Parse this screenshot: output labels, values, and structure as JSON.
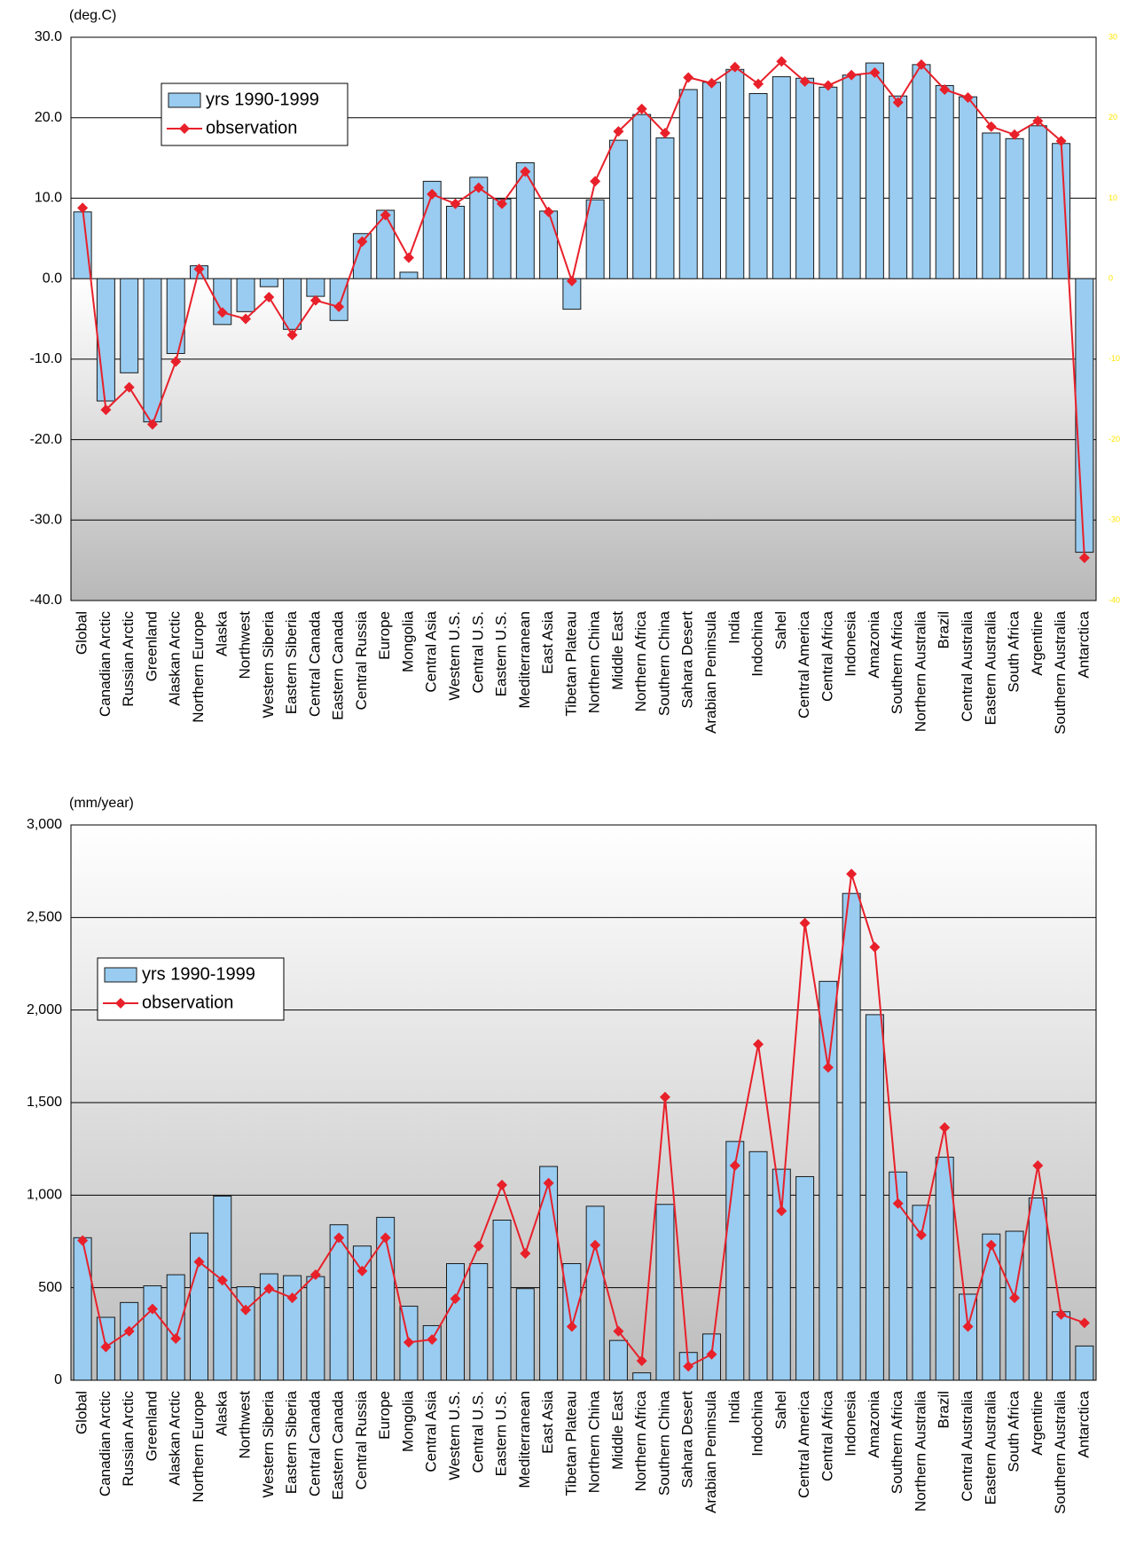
{
  "chart_data": [
    {
      "type": "combo",
      "y_label": "(deg.C)",
      "categories": [
        "Global",
        "Canadian Arctic",
        "Russian Arctic",
        "Greenland",
        "Alaskan Arctic",
        "Northern Europe",
        "Alaska",
        "Northwest",
        "Western Siberia",
        "Eastern Siberia",
        "Central Canada",
        "Eastern Canada",
        "Central Russia",
        "Europe",
        "Mongolia",
        "Central Asia",
        "Western U.S.",
        "Central U.S.",
        "Eastern U.S.",
        "Mediterranean",
        "East Asia",
        "Tibetan Plateau",
        "Northern China",
        "Middle East",
        "Northern Africa",
        "Southern China",
        "Sahara Desert",
        "Arabian Peninsula",
        "India",
        "Indochina",
        "Sahel",
        "Central America",
        "Central Africa",
        "Indonesia",
        "Amazonia",
        "Southern Africa",
        "Northern Australia",
        "Brazil",
        "Central Australia",
        "Eastern Australia",
        "South Africa",
        "Argentine",
        "Southern Australia",
        "Antarctica"
      ],
      "series": [
        {
          "name": "yrs 1990-1999",
          "type": "bar",
          "color": "#99ccf0",
          "values": [
            8.3,
            -15.2,
            -11.7,
            -17.8,
            -9.3,
            1.6,
            -5.7,
            -4.1,
            -1.0,
            -6.3,
            -2.2,
            -5.2,
            5.6,
            8.5,
            0.8,
            12.1,
            9.0,
            12.6,
            9.9,
            14.4,
            8.4,
            -3.8,
            9.8,
            17.2,
            20.4,
            17.5,
            23.5,
            24.4,
            26.0,
            23.0,
            25.1,
            24.9,
            23.8,
            25.3,
            26.8,
            22.7,
            26.6,
            24.0,
            22.6,
            18.1,
            17.4,
            19.0,
            16.8,
            -34.0
          ]
        },
        {
          "name": "observation",
          "type": "line",
          "color": "#e8202a",
          "values": [
            8.8,
            -16.3,
            -13.5,
            -18.1,
            -10.3,
            1.2,
            -4.2,
            -5.0,
            -2.3,
            -7.0,
            -2.7,
            -3.5,
            4.6,
            7.9,
            2.6,
            10.5,
            9.3,
            11.3,
            9.3,
            13.3,
            8.3,
            -0.3,
            12.1,
            18.3,
            21.1,
            18.1,
            25.0,
            24.3,
            26.3,
            24.2,
            27.0,
            24.5,
            24.0,
            25.3,
            25.6,
            21.9,
            26.6,
            23.5,
            22.5,
            18.9,
            17.9,
            19.6,
            17.1,
            -34.7
          ]
        }
      ],
      "ylim": [
        -40,
        30
      ],
      "yticks": [
        {
          "value": -40,
          "label": "-40.0"
        },
        {
          "value": -30,
          "label": "-30.0"
        },
        {
          "value": -20,
          "label": "-20.0"
        },
        {
          "value": -10,
          "label": "-10.0"
        },
        {
          "value": 0,
          "label": "0.0"
        },
        {
          "value": 10,
          "label": "10.0"
        },
        {
          "value": 20,
          "label": "20.0"
        },
        {
          "value": 30,
          "label": "30.0"
        }
      ],
      "y2lim": [
        -40,
        30
      ],
      "y2ticks": [
        -40,
        -30,
        -20,
        -10,
        0,
        10,
        20,
        30
      ],
      "y2color": "#ffe600",
      "grid": true,
      "legend": "upper left"
    },
    {
      "type": "combo",
      "y_label": "(mm/year)",
      "categories": [
        "Global",
        "Canadian Arctic",
        "Russian Arctic",
        "Greenland",
        "Alaskan Arctic",
        "Northern Europe",
        "Alaska",
        "Northwest",
        "Western Siberia",
        "Eastern Siberia",
        "Central Canada",
        "Eastern Canada",
        "Central Russia",
        "Europe",
        "Mongolia",
        "Central Asia",
        "Western U.S.",
        "Central U.S.",
        "Eastern U.S.",
        "Mediterranean",
        "East Asia",
        "Tibetan Plateau",
        "Northern China",
        "Middle East",
        "Northern Africa",
        "Southern China",
        "Sahara Desert",
        "Arabian Peninsula",
        "India",
        "Indochina",
        "Sahel",
        "Central America",
        "Central Africa",
        "Indonesia",
        "Amazonia",
        "Southern Africa",
        "Northern Australia",
        "Brazil",
        "Central Australia",
        "Eastern Australia",
        "South Africa",
        "Argentine",
        "Southern Australia",
        "Antarctica"
      ],
      "series": [
        {
          "name": "yrs 1990-1999",
          "type": "bar",
          "color": "#99ccf0",
          "values": [
            770,
            340,
            420,
            510,
            570,
            795,
            995,
            505,
            575,
            565,
            560,
            840,
            725,
            880,
            400,
            295,
            630,
            630,
            865,
            495,
            1155,
            630,
            940,
            215,
            40,
            950,
            150,
            250,
            1290,
            1235,
            1140,
            1100,
            2155,
            2630,
            1975,
            1125,
            945,
            1205,
            465,
            790,
            805,
            985,
            370,
            185
          ]
        },
        {
          "name": "observation",
          "type": "line",
          "color": "#e8202a",
          "values": [
            755,
            180,
            265,
            385,
            225,
            640,
            540,
            380,
            495,
            445,
            570,
            770,
            590,
            770,
            205,
            220,
            440,
            725,
            1055,
            685,
            1065,
            290,
            730,
            265,
            105,
            1530,
            75,
            140,
            1160,
            1815,
            915,
            2470,
            1690,
            2735,
            2340,
            955,
            785,
            1365,
            290,
            730,
            445,
            1160,
            355,
            310
          ]
        }
      ],
      "ylim": [
        0,
        3000
      ],
      "yticks": [
        0,
        500,
        {
          "value": 1000,
          "label": "1,000"
        },
        {
          "value": 1500,
          "label": "1,500"
        },
        {
          "value": 2000,
          "label": "2,000"
        },
        {
          "value": 2500,
          "label": "2,500"
        },
        {
          "value": 3000,
          "label": "3,000"
        }
      ],
      "grid": true,
      "legend": "upper left"
    }
  ]
}
